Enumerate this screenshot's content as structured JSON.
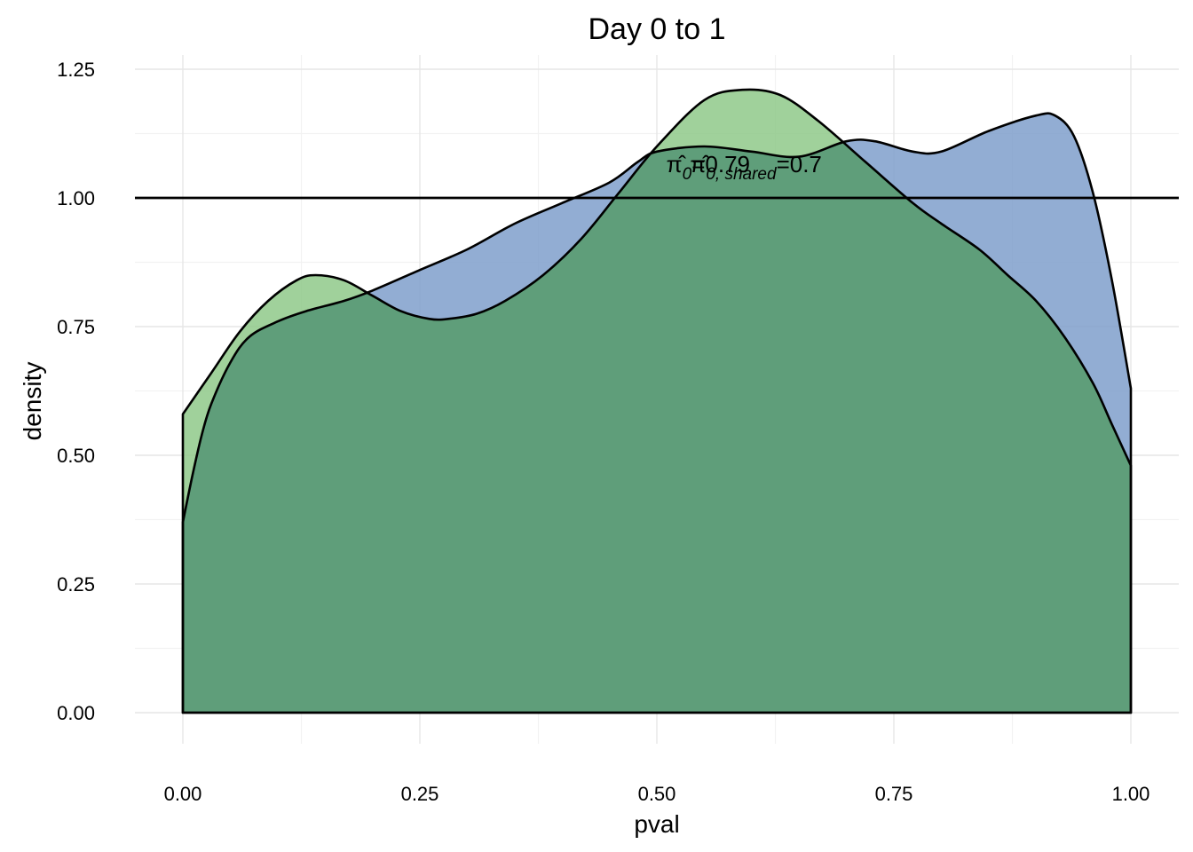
{
  "chart_data": {
    "type": "area",
    "title": "Day 0 to 1",
    "xlabel": "pval",
    "ylabel": "density",
    "xlim": [
      0,
      1
    ],
    "ylim": [
      0,
      1.25
    ],
    "x_ticks": [
      "0.00",
      "0.25",
      "0.50",
      "0.75",
      "1.00"
    ],
    "y_ticks": [
      "0.00",
      "0.25",
      "0.50",
      "0.75",
      "1.00",
      "1.25"
    ],
    "grid": true,
    "reference_line": {
      "y": 1.0,
      "color": "#000000"
    },
    "annotations": [
      {
        "main": "π̂",
        "sub": "0",
        "eq": "=0.79",
        "x": 0.51,
        "y": 1.06
      },
      {
        "main": "π̂",
        "sub": "0, shared",
        "eq": "=0.7",
        "x": 0.535,
        "y": 1.06
      }
    ],
    "series": [
      {
        "fill": "#7f9fcb",
        "opacity": 0.85,
        "points": [
          [
            0.0,
            0.37
          ],
          [
            0.01,
            0.46
          ],
          [
            0.02,
            0.54
          ],
          [
            0.03,
            0.6
          ],
          [
            0.05,
            0.68
          ],
          [
            0.07,
            0.73
          ],
          [
            0.1,
            0.76
          ],
          [
            0.13,
            0.78
          ],
          [
            0.17,
            0.8
          ],
          [
            0.2,
            0.82
          ],
          [
            0.25,
            0.86
          ],
          [
            0.3,
            0.9
          ],
          [
            0.35,
            0.95
          ],
          [
            0.4,
            0.99
          ],
          [
            0.45,
            1.03
          ],
          [
            0.48,
            1.07
          ],
          [
            0.5,
            1.09
          ],
          [
            0.55,
            1.1
          ],
          [
            0.6,
            1.09
          ],
          [
            0.65,
            1.08
          ],
          [
            0.7,
            1.11
          ],
          [
            0.73,
            1.11
          ],
          [
            0.77,
            1.09
          ],
          [
            0.8,
            1.09
          ],
          [
            0.85,
            1.13
          ],
          [
            0.9,
            1.16
          ],
          [
            0.92,
            1.16
          ],
          [
            0.94,
            1.12
          ],
          [
            0.96,
            1.01
          ],
          [
            0.98,
            0.84
          ],
          [
            1.0,
            0.63
          ]
        ]
      },
      {
        "fill": "#8fc98a",
        "opacity": 0.85,
        "points": [
          [
            0.0,
            0.58
          ],
          [
            0.03,
            0.66
          ],
          [
            0.06,
            0.74
          ],
          [
            0.09,
            0.8
          ],
          [
            0.12,
            0.84
          ],
          [
            0.14,
            0.85
          ],
          [
            0.17,
            0.84
          ],
          [
            0.2,
            0.81
          ],
          [
            0.23,
            0.78
          ],
          [
            0.26,
            0.765
          ],
          [
            0.28,
            0.765
          ],
          [
            0.31,
            0.775
          ],
          [
            0.34,
            0.8
          ],
          [
            0.38,
            0.85
          ],
          [
            0.42,
            0.92
          ],
          [
            0.46,
            1.01
          ],
          [
            0.5,
            1.1
          ],
          [
            0.55,
            1.19
          ],
          [
            0.59,
            1.21
          ],
          [
            0.63,
            1.2
          ],
          [
            0.67,
            1.15
          ],
          [
            0.72,
            1.07
          ],
          [
            0.77,
            0.99
          ],
          [
            0.8,
            0.95
          ],
          [
            0.84,
            0.9
          ],
          [
            0.87,
            0.85
          ],
          [
            0.9,
            0.8
          ],
          [
            0.93,
            0.73
          ],
          [
            0.96,
            0.64
          ],
          [
            0.98,
            0.56
          ],
          [
            1.0,
            0.48
          ]
        ]
      }
    ],
    "overlap_fill": "#5f9e7a"
  }
}
